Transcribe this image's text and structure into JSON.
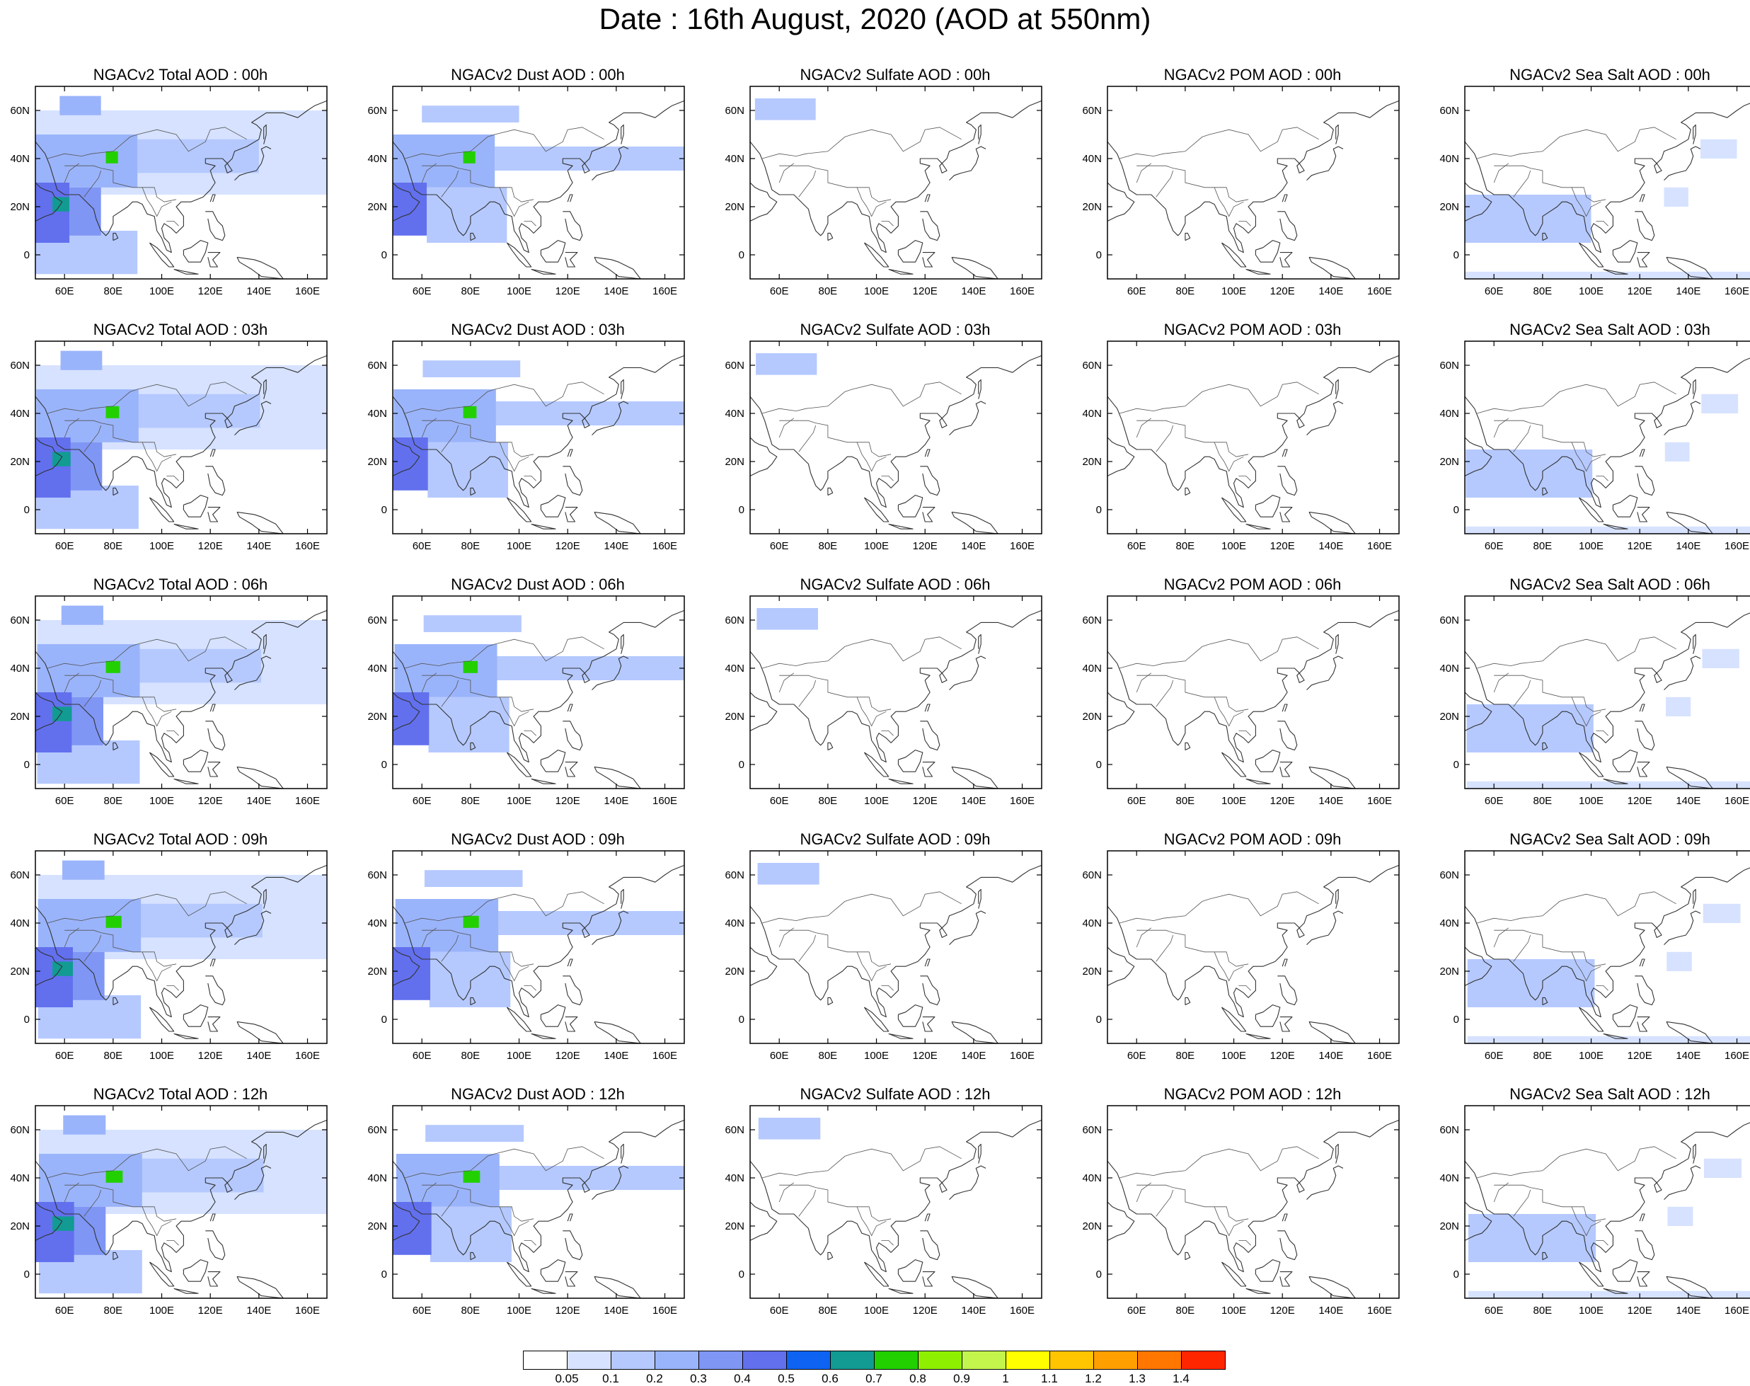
{
  "title": "Date : 16th August, 2020 (AOD at 550nm)",
  "panel_titles": [
    [
      "NGACv2 Total AOD : 00h",
      "NGACv2 Dust AOD : 00h",
      "NGACv2 Sulfate AOD : 00h",
      "NGACv2 POM AOD : 00h",
      "NGACv2 Sea Salt AOD : 00h"
    ],
    [
      "NGACv2 Total AOD : 03h",
      "NGACv2 Dust AOD : 03h",
      "NGACv2 Sulfate AOD : 03h",
      "NGACv2 POM AOD : 03h",
      "NGACv2 Sea Salt AOD : 03h"
    ],
    [
      "NGACv2 Total AOD : 06h",
      "NGACv2 Dust AOD : 06h",
      "NGACv2 Sulfate AOD : 06h",
      "NGACv2 POM AOD : 06h",
      "NGACv2 Sea Salt AOD : 06h"
    ],
    [
      "NGACv2 Total AOD : 09h",
      "NGACv2 Dust AOD : 09h",
      "NGACv2 Sulfate AOD : 09h",
      "NGACv2 POM AOD : 09h",
      "NGACv2 Sea Salt  AOD : 09h"
    ],
    [
      "NGACv2 Total AOD  : 12h",
      "NGACv2 Dust AOD : 12h",
      "NGACv2 Sulfate AOD : 12h",
      "NGACv2 POM  AOD : 12h",
      "NGACv2 Sea Salt  AOD : 12h"
    ]
  ],
  "axes": {
    "lon_labels": [
      "60E",
      "80E",
      "100E",
      "120E",
      "140E",
      "160E"
    ],
    "lon_values": [
      60,
      80,
      100,
      120,
      140,
      160
    ],
    "lat_labels": [
      "60N",
      "40N",
      "20N",
      "0"
    ],
    "lat_values": [
      60,
      40,
      20,
      0
    ],
    "lon_range": [
      48,
      168
    ],
    "lat_range": [
      -10,
      70
    ]
  },
  "colorbar": {
    "colors": [
      "#ffffff",
      "#d6e2ff",
      "#b5c9ff",
      "#9ab4fb",
      "#7f96f5",
      "#6270ee",
      "#0f63f2",
      "#129b93",
      "#22d000",
      "#8fef00",
      "#c3f54d",
      "#ffff00",
      "#ffc500",
      "#ff9f00",
      "#ff7600",
      "#ff2600"
    ],
    "labels": [
      "0.05",
      "0.1",
      "0.2",
      "0.3",
      "0.4",
      "0.5",
      "0.6",
      "0.7",
      "0.8",
      "0.9",
      "1",
      "1.1",
      "1.2",
      "1.3",
      "1.4"
    ]
  },
  "chart_data": {
    "type": "heatmap",
    "title": "Date : 16th August, 2020 (AOD at 550nm)",
    "rows": [
      "00h",
      "03h",
      "06h",
      "09h",
      "12h"
    ],
    "columns": [
      "Total",
      "Dust",
      "Sulfate",
      "POM",
      "Sea Salt"
    ],
    "lon_range": [
      48,
      168
    ],
    "lat_range": [
      -10,
      70
    ],
    "levels": [
      0.05,
      0.1,
      0.2,
      0.3,
      0.4,
      0.5,
      0.6,
      0.7,
      0.8,
      0.9,
      1,
      1.1,
      1.2,
      1.3,
      1.4
    ],
    "fields": {
      "Total": [
        {
          "lon": [
            48,
            62
          ],
          "lat": [
            5,
            30
          ],
          "value": 0.45
        },
        {
          "lon": [
            62,
            75
          ],
          "lat": [
            8,
            28
          ],
          "value": 0.3
        },
        {
          "lon": [
            48,
            90
          ],
          "lat": [
            28,
            50
          ],
          "value": 0.25
        },
        {
          "lon": [
            77,
            82
          ],
          "lat": [
            38,
            43
          ],
          "value": 0.75
        },
        {
          "lon": [
            55,
            62
          ],
          "lat": [
            18,
            24
          ],
          "value": 0.6
        },
        {
          "lon": [
            58,
            75
          ],
          "lat": [
            58,
            66
          ],
          "value": 0.2
        },
        {
          "lon": [
            90,
            140
          ],
          "lat": [
            34,
            48
          ],
          "value": 0.15
        },
        {
          "lon": [
            48,
            168
          ],
          "lat": [
            25,
            60
          ],
          "value": 0.08
        },
        {
          "lon": [
            48,
            90
          ],
          "lat": [
            -8,
            10
          ],
          "value": 0.1
        }
      ],
      "Dust": [
        {
          "lon": [
            48,
            62
          ],
          "lat": [
            8,
            30
          ],
          "value": 0.45
        },
        {
          "lon": [
            48,
            90
          ],
          "lat": [
            28,
            50
          ],
          "value": 0.25
        },
        {
          "lon": [
            77,
            82
          ],
          "lat": [
            38,
            43
          ],
          "value": 0.7
        },
        {
          "lon": [
            90,
            168
          ],
          "lat": [
            35,
            45
          ],
          "value": 0.12
        },
        {
          "lon": [
            62,
            95
          ],
          "lat": [
            5,
            28
          ],
          "value": 0.12
        },
        {
          "lon": [
            60,
            100
          ],
          "lat": [
            55,
            62
          ],
          "value": 0.1
        }
      ],
      "Sulfate": [
        {
          "lon": [
            50,
            75
          ],
          "lat": [
            56,
            65
          ],
          "value": 0.12
        }
      ],
      "POM": [],
      "Sea Salt": [
        {
          "lon": [
            48,
            100
          ],
          "lat": [
            5,
            25
          ],
          "value": 0.12
        },
        {
          "lon": [
            145,
            160
          ],
          "lat": [
            40,
            48
          ],
          "value": 0.08
        },
        {
          "lon": [
            130,
            140
          ],
          "lat": [
            20,
            28
          ],
          "value": 0.08
        },
        {
          "lon": [
            48,
            168
          ],
          "lat": [
            -10,
            -7
          ],
          "value": 0.07
        }
      ]
    }
  }
}
